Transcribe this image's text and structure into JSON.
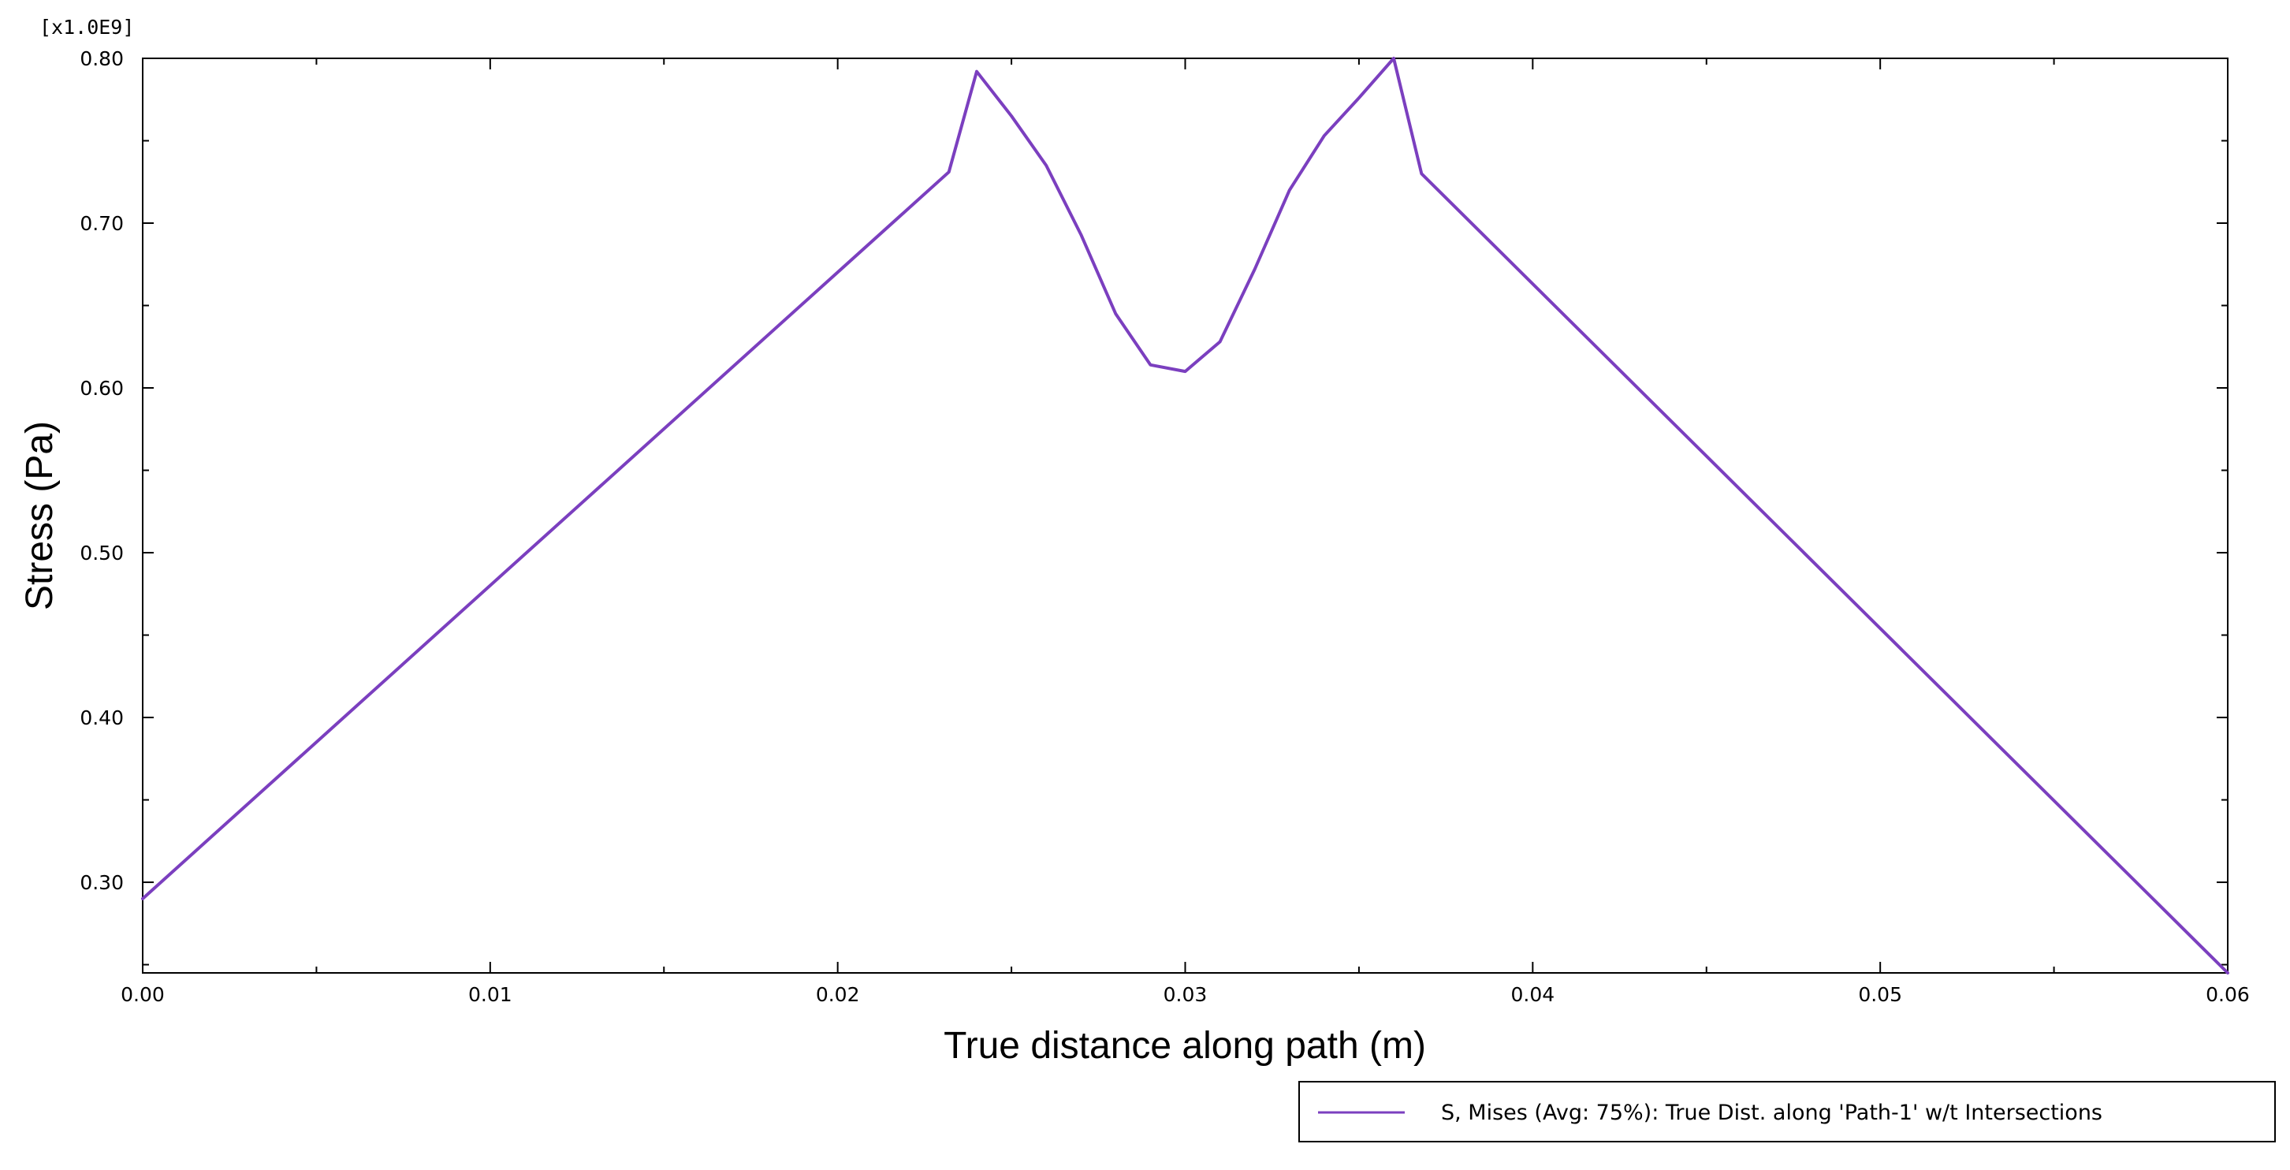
{
  "chart_data": {
    "type": "line",
    "scale_label": "[x1.0E9]",
    "xlabel": "True distance along path (m)",
    "ylabel": "Stress (Pa)",
    "xlim": [
      0.0,
      0.06
    ],
    "ylim": [
      0.245,
      0.8
    ],
    "x_ticks": [
      0.0,
      0.01,
      0.02,
      0.03,
      0.04,
      0.05,
      0.06
    ],
    "x_tick_labels": [
      "0.00",
      "0.01",
      "0.02",
      "0.03",
      "0.04",
      "0.05",
      "0.06"
    ],
    "y_ticks": [
      0.3,
      0.4,
      0.5,
      0.6,
      0.7,
      0.8
    ],
    "y_tick_labels": [
      "0.30",
      "0.40",
      "0.50",
      "0.60",
      "0.70",
      "0.80"
    ],
    "x_minor_step": 0.005,
    "y_minor_step": 0.05,
    "grid": false,
    "legend_position": "bottom-right",
    "series": [
      {
        "name": "S, Mises (Avg: 75%): True Dist. along 'Path-1' w/t Intersections",
        "color": "#7b3fbf",
        "x": [
          0.0,
          0.0232,
          0.024,
          0.025,
          0.026,
          0.027,
          0.028,
          0.029,
          0.03,
          0.031,
          0.032,
          0.033,
          0.034,
          0.035,
          0.036,
          0.0368,
          0.06
        ],
        "y": [
          0.29,
          0.731,
          0.792,
          0.765,
          0.735,
          0.693,
          0.645,
          0.614,
          0.61,
          0.628,
          0.672,
          0.72,
          0.753,
          0.776,
          0.8,
          0.73,
          0.245
        ]
      }
    ]
  }
}
